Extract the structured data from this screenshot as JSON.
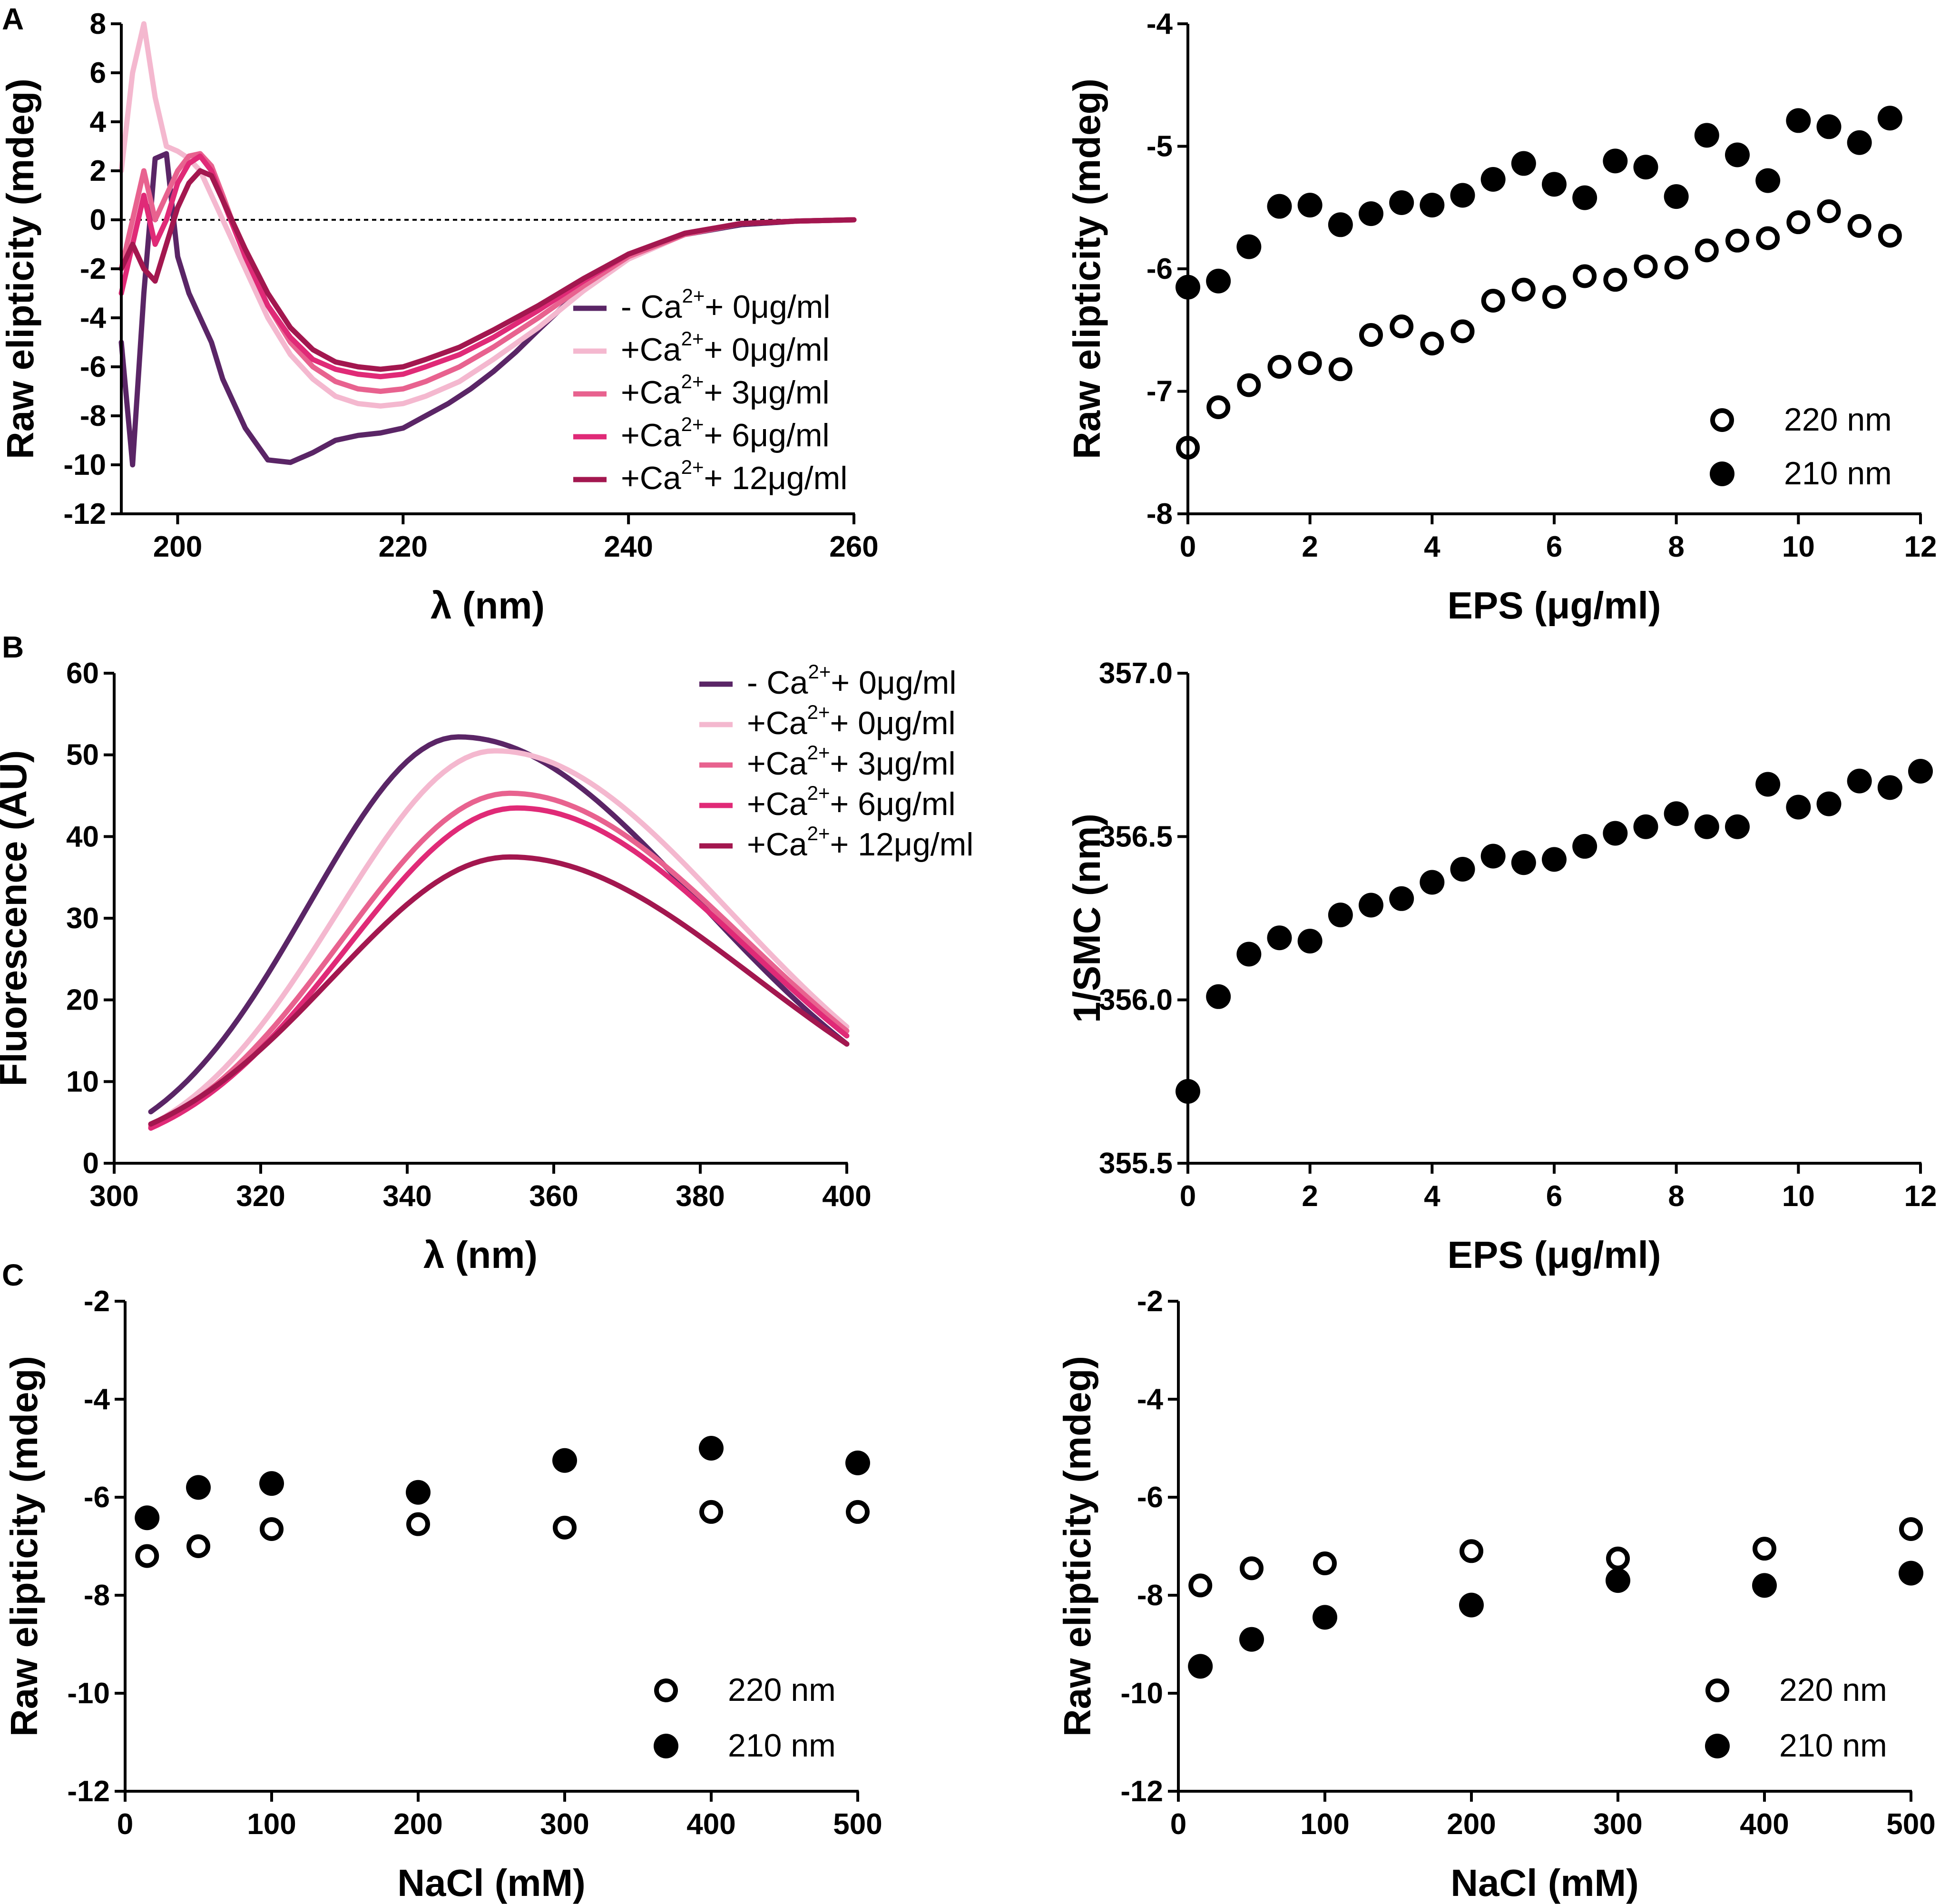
{
  "panel_labels": [
    "A",
    "B",
    "C"
  ],
  "chart_data": [
    {
      "id": "A-left",
      "type": "line",
      "xlabel": "λ (nm)",
      "ylabel": "Raw elipticity (mdeg)",
      "xlim": [
        195,
        260
      ],
      "ylim": [
        -12,
        8
      ],
      "xticks": [
        200,
        220,
        240,
        260
      ],
      "yticks": [
        8,
        6,
        4,
        2,
        0,
        -2,
        -4,
        -6,
        -8,
        -10,
        -12
      ],
      "zero_line": true,
      "series": [
        {
          "name": "- Ca²⁺+ 0μg/ml",
          "label_pre": "- Ca",
          "sup": "2+",
          "label_post": "+ 0μg/ml",
          "color": "#5a2566",
          "x": [
            195,
            196,
            197,
            198,
            199,
            200,
            201,
            202,
            203,
            204,
            206,
            208,
            210,
            212,
            214,
            216,
            218,
            220,
            222,
            224,
            226,
            228,
            230,
            232,
            235,
            238,
            240,
            245,
            250,
            255,
            260
          ],
          "y": [
            -5,
            -10,
            -3,
            2.5,
            2.7,
            -1.5,
            -3,
            -4,
            -5,
            -6.5,
            -8.5,
            -9.8,
            -9.9,
            -9.5,
            -9.0,
            -8.8,
            -8.7,
            -8.5,
            -8.0,
            -7.5,
            -6.9,
            -6.2,
            -5.4,
            -4.5,
            -3.2,
            -2.0,
            -1.4,
            -0.6,
            -0.2,
            -0.05,
            0
          ]
        },
        {
          "name": "+Ca²⁺+ 0μg/ml",
          "label_pre": "+Ca",
          "sup": "2+",
          "label_post": "+ 0μg/ml",
          "color": "#f4b8cf",
          "x": [
            195,
            196,
            197,
            198,
            199,
            200,
            201,
            202,
            203,
            204,
            206,
            208,
            210,
            212,
            214,
            216,
            218,
            220,
            222,
            225,
            228,
            232,
            236,
            240,
            245,
            250,
            255,
            260
          ],
          "y": [
            2,
            6,
            8,
            5,
            3,
            2.8,
            2.5,
            2,
            1,
            0,
            -2,
            -4,
            -5.5,
            -6.5,
            -7.2,
            -7.5,
            -7.6,
            -7.5,
            -7.2,
            -6.6,
            -5.7,
            -4.4,
            -2.9,
            -1.6,
            -0.6,
            -0.15,
            -0.05,
            0
          ]
        },
        {
          "name": "+Ca²⁺+ 3μg/ml",
          "label_pre": "+Ca",
          "sup": "2+",
          "label_post": "+ 3μg/ml",
          "color": "#e8628f",
          "x": [
            195,
            196,
            197,
            198,
            199,
            200,
            201,
            202,
            203,
            204,
            206,
            208,
            210,
            212,
            214,
            216,
            218,
            220,
            222,
            225,
            228,
            232,
            236,
            240,
            245,
            250,
            255,
            260
          ],
          "y": [
            -2,
            0,
            2,
            0,
            1,
            2,
            2.6,
            2.7,
            2.2,
            1,
            -1.5,
            -3.5,
            -5,
            -6,
            -6.6,
            -6.9,
            -7.0,
            -6.9,
            -6.6,
            -6.0,
            -5.2,
            -4.0,
            -2.7,
            -1.5,
            -0.6,
            -0.15,
            -0.05,
            0
          ]
        },
        {
          "name": "+Ca²⁺+ 6μg/ml",
          "label_pre": "+Ca",
          "sup": "2+",
          "label_post": "+ 6μg/ml",
          "color": "#e02a77",
          "x": [
            195,
            196,
            197,
            198,
            199,
            200,
            201,
            202,
            203,
            204,
            206,
            208,
            210,
            212,
            214,
            216,
            218,
            220,
            222,
            225,
            228,
            232,
            236,
            240,
            245,
            250,
            255,
            260
          ],
          "y": [
            -3,
            -1,
            1,
            -1,
            0,
            1.5,
            2.3,
            2.6,
            2,
            0.8,
            -1.5,
            -3.5,
            -4.8,
            -5.7,
            -6.1,
            -6.3,
            -6.4,
            -6.3,
            -6.0,
            -5.5,
            -4.8,
            -3.7,
            -2.5,
            -1.4,
            -0.55,
            -0.15,
            -0.05,
            0
          ]
        },
        {
          "name": "+Ca²⁺+ 12μg/ml",
          "label_pre": "+Ca",
          "sup": "2+",
          "label_post": "+ 12μg/ml",
          "color": "#a3174f",
          "x": [
            195,
            196,
            197,
            198,
            199,
            200,
            201,
            202,
            203,
            204,
            206,
            208,
            210,
            212,
            214,
            216,
            218,
            220,
            222,
            225,
            228,
            232,
            236,
            240,
            245,
            250,
            255,
            260
          ],
          "y": [
            -2,
            -1,
            -2,
            -2.5,
            -1,
            0.5,
            1.5,
            2,
            1.8,
            0.8,
            -1.2,
            -3.0,
            -4.4,
            -5.3,
            -5.8,
            -6.0,
            -6.1,
            -6.0,
            -5.7,
            -5.2,
            -4.5,
            -3.5,
            -2.4,
            -1.4,
            -0.55,
            -0.15,
            -0.05,
            0
          ]
        }
      ]
    },
    {
      "id": "A-right",
      "type": "scatter",
      "xlabel": "EPS (μg/ml)",
      "ylabel": "Raw elipticity (mdeg)",
      "xlim": [
        0,
        12
      ],
      "ylim": [
        -8,
        -4
      ],
      "xticks": [
        0,
        2,
        4,
        6,
        8,
        10,
        12
      ],
      "yticks": [
        -4,
        -5,
        -6,
        -7,
        -8
      ],
      "series": [
        {
          "name": "220 nm",
          "marker": "open",
          "x": [
            0,
            0.5,
            1,
            1.5,
            2,
            2.5,
            3,
            3.5,
            4,
            4.5,
            5,
            5.5,
            6,
            6.5,
            7,
            7.5,
            8,
            8.5,
            9,
            9.5,
            10,
            10.5,
            11,
            11.5
          ],
          "y": [
            -7.46,
            -7.13,
            -6.95,
            -6.8,
            -6.77,
            -6.82,
            -6.54,
            -6.47,
            -6.61,
            -6.51,
            -6.26,
            -6.17,
            -6.23,
            -6.06,
            -6.09,
            -5.98,
            -5.99,
            -5.85,
            -5.77,
            -5.75,
            -5.62,
            -5.53,
            -5.65,
            -5.73
          ]
        },
        {
          "name": "210 nm",
          "marker": "filled",
          "x": [
            0,
            0.5,
            1,
            1.5,
            2,
            2.5,
            3,
            3.5,
            4,
            4.5,
            5,
            5.5,
            6,
            6.5,
            7,
            7.5,
            8,
            8.5,
            9,
            9.5,
            10,
            10.5,
            11,
            11.5
          ],
          "y": [
            -6.15,
            -6.1,
            -5.82,
            -5.49,
            -5.48,
            -5.64,
            -5.55,
            -5.46,
            -5.48,
            -5.4,
            -5.27,
            -5.14,
            -5.31,
            -5.42,
            -5.12,
            -5.17,
            -5.41,
            -4.91,
            -5.07,
            -5.28,
            -4.79,
            -4.84,
            -4.97,
            -4.77
          ]
        }
      ]
    },
    {
      "id": "B-left",
      "type": "line",
      "xlabel": "λ (nm)",
      "ylabel": "Fluorescence (AU)",
      "xlim": [
        300,
        400
      ],
      "ylim": [
        0,
        60
      ],
      "xticks": [
        300,
        320,
        340,
        360,
        380,
        400
      ],
      "yticks": [
        60,
        50,
        40,
        30,
        20,
        10,
        0
      ],
      "series": [
        {
          "name": "- Ca²⁺+ 0μg/ml",
          "label_pre": "- Ca",
          "sup": "2+",
          "label_post": "+ 0μg/ml",
          "color": "#5a2566",
          "peak_x": 347,
          "peak_y": 52.2,
          "x_start": 305,
          "y_start": 6.3,
          "y_end": 14.6
        },
        {
          "name": "+Ca²⁺+ 0μg/ml",
          "label_pre": "+Ca",
          "sup": "2+",
          "label_post": "+ 0μg/ml",
          "color": "#f4b8cf",
          "peak_x": 352,
          "peak_y": 50.5,
          "x_start": 305,
          "y_start": 4.7,
          "y_end": 16.7
        },
        {
          "name": "+Ca²⁺+ 3μg/ml",
          "label_pre": "+Ca",
          "sup": "2+",
          "label_post": "+ 3μg/ml",
          "color": "#e8628f",
          "peak_x": 354,
          "peak_y": 45.3,
          "x_start": 305,
          "y_start": 4.5,
          "y_end": 16.2
        },
        {
          "name": "+Ca²⁺+ 6μg/ml",
          "label_pre": "+Ca",
          "sup": "2+",
          "label_post": "+ 6μg/ml",
          "color": "#e02a77",
          "peak_x": 355,
          "peak_y": 43.5,
          "x_start": 305,
          "y_start": 4.3,
          "y_end": 15.6
        },
        {
          "name": "+Ca²⁺+ 12μg/ml",
          "label_pre": "+Ca",
          "sup": "2+",
          "label_post": "+ 12μg/ml",
          "color": "#a3174f",
          "peak_x": 354,
          "peak_y": 37.5,
          "x_start": 305,
          "y_start": 4.8,
          "y_end": 14.6
        }
      ]
    },
    {
      "id": "B-right",
      "type": "scatter",
      "xlabel": "EPS (μg/ml)",
      "ylabel": "1/SMC (nm)",
      "xlim": [
        0,
        12
      ],
      "ylim": [
        355.5,
        357.0
      ],
      "xticks": [
        0,
        2,
        4,
        6,
        8,
        10,
        12
      ],
      "yticks": [
        "357.0",
        "356.5",
        "356.0",
        "355.5"
      ],
      "series": [
        {
          "name": "",
          "marker": "filled",
          "x": [
            0,
            0.5,
            1,
            1.5,
            2,
            2.5,
            3,
            3.5,
            4,
            4.5,
            5,
            5.5,
            6,
            6.5,
            7,
            7.5,
            8,
            8.5,
            9,
            9.5,
            10,
            10.5,
            11,
            11.5,
            12
          ],
          "y": [
            355.72,
            356.01,
            356.14,
            356.19,
            356.18,
            356.26,
            356.29,
            356.31,
            356.36,
            356.4,
            356.44,
            356.42,
            356.43,
            356.47,
            356.51,
            356.53,
            356.57,
            356.53,
            356.53,
            356.66,
            356.59,
            356.6,
            356.67,
            356.65,
            356.7
          ]
        }
      ]
    },
    {
      "id": "C-left",
      "type": "scatter",
      "xlabel": "NaCl (mM)",
      "ylabel": "Raw elipticity (mdeg)",
      "xlim": [
        0,
        500
      ],
      "ylim": [
        -12,
        -2
      ],
      "xticks": [
        0,
        100,
        200,
        300,
        400,
        500
      ],
      "yticks": [
        -2,
        -4,
        -6,
        -8,
        -10,
        -12
      ],
      "series": [
        {
          "name": "220 nm",
          "marker": "open",
          "x": [
            15,
            50,
            100,
            200,
            300,
            400,
            500
          ],
          "y": [
            -7.2,
            -7.0,
            -6.65,
            -6.55,
            -6.62,
            -6.3,
            -6.3
          ]
        },
        {
          "name": "210 nm",
          "marker": "filled",
          "x": [
            15,
            50,
            100,
            200,
            300,
            400,
            500
          ],
          "y": [
            -6.42,
            -5.8,
            -5.72,
            -5.9,
            -5.25,
            -5.0,
            -5.3
          ]
        }
      ]
    },
    {
      "id": "C-right",
      "type": "scatter",
      "xlabel": "NaCl (mM)",
      "ylabel": "Raw elipticity (mdeg)",
      "xlim": [
        0,
        500
      ],
      "ylim": [
        -12,
        -2
      ],
      "xticks": [
        0,
        100,
        200,
        300,
        400,
        500
      ],
      "yticks": [
        -2,
        -4,
        -6,
        -8,
        -10,
        -12
      ],
      "series": [
        {
          "name": "220 nm",
          "marker": "open",
          "x": [
            15,
            50,
            100,
            200,
            300,
            400,
            500
          ],
          "y": [
            -7.8,
            -7.45,
            -7.35,
            -7.1,
            -7.25,
            -7.05,
            -6.65
          ]
        },
        {
          "name": "210 nm",
          "marker": "filled",
          "x": [
            15,
            50,
            100,
            200,
            300,
            400,
            500
          ],
          "y": [
            -9.45,
            -8.9,
            -8.45,
            -8.2,
            -7.7,
            -7.8,
            -7.55
          ]
        }
      ]
    }
  ]
}
